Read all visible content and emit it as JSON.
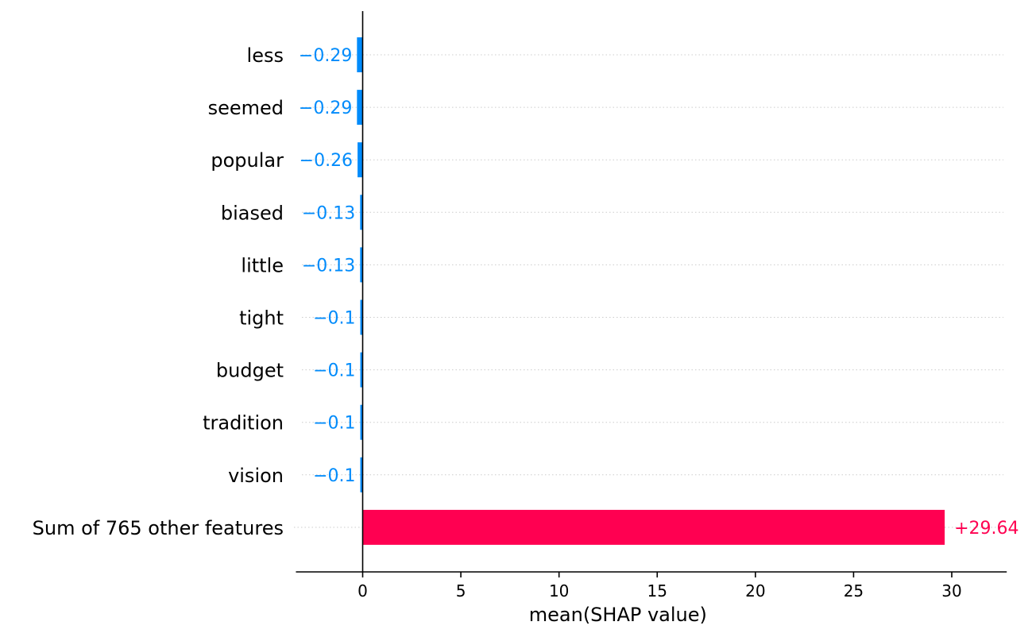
{
  "chart_data": {
    "type": "bar",
    "orientation": "horizontal",
    "categories": [
      "less",
      "seemed",
      "popular",
      "biased",
      "little",
      "tight",
      "budget",
      "tradition",
      "vision",
      "Sum of 765 other features"
    ],
    "values": [
      -0.29,
      -0.29,
      -0.26,
      -0.13,
      -0.13,
      -0.1,
      -0.1,
      -0.1,
      -0.1,
      29.64
    ],
    "value_labels": [
      "−0.29",
      "−0.29",
      "−0.26",
      "−0.13",
      "−0.13",
      "−0.1",
      "−0.1",
      "−0.1",
      "−0.1",
      "+29.64"
    ],
    "xlabel": "mean(SHAP value)",
    "ylabel": "",
    "title": "",
    "xlim": [
      -3.4,
      32.8
    ],
    "xticks": [
      0,
      5,
      10,
      15,
      20,
      25,
      30
    ],
    "xtick_labels": [
      "0",
      "5",
      "10",
      "15",
      "20",
      "25",
      "30"
    ],
    "grid": "horizontal dotted guide lines per row",
    "legend": "none",
    "colors": {
      "negative": "#008bfb",
      "positive": "#ff0051",
      "axis": "#000000",
      "guide": "#cccccc"
    }
  }
}
